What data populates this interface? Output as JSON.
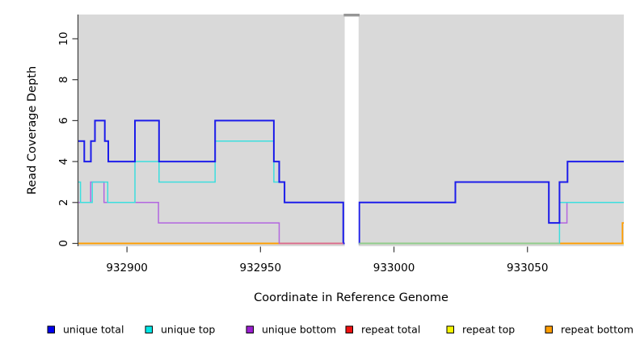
{
  "figure": {
    "xlabel": "Coordinate in Reference Genome",
    "ylabel": "Read Coverage Depth"
  },
  "chart_data": {
    "type": "line",
    "subtype": "step-after-coverage",
    "title": "",
    "xlabel": "Coordinate in Reference Genome",
    "ylabel": "Read Coverage Depth",
    "xlim": [
      932881.8,
      933086.1
    ],
    "ylim": [
      0,
      11.2
    ],
    "x_ticks": [
      932900,
      932950,
      933000,
      933050
    ],
    "x_tick_labels": [
      "932900",
      "932950",
      "933000",
      "933050"
    ],
    "y_ticks": [
      0,
      2,
      4,
      6,
      8,
      10
    ],
    "y_tick_labels": [
      "0",
      "2",
      "4",
      "6",
      "8",
      "10"
    ],
    "grid": false,
    "panel_bg": "#d9d9d9",
    "axis_color": "#3c3c3c",
    "gap": {
      "x_start": 932981.55,
      "x_end": 932986.75,
      "fill": "#ffffff",
      "cap_color": "#969696"
    },
    "legend_position": "bottom",
    "series": [
      {
        "name": "unique total",
        "color": "#1c1cea",
        "swatch": "#0000ee",
        "width": 2.0,
        "points": [
          [
            932881.8,
            5
          ],
          [
            932884,
            4
          ],
          [
            932886.5,
            5
          ],
          [
            932888,
            6
          ],
          [
            932891.7,
            5
          ],
          [
            932893,
            4
          ],
          [
            932903,
            6
          ],
          [
            932912,
            4
          ],
          [
            932933,
            6
          ],
          [
            932955,
            4
          ],
          [
            932957,
            3
          ],
          [
            932959,
            2
          ],
          [
            932981,
            0
          ],
          [
            932987,
            2
          ],
          [
            933023,
            3
          ],
          [
            933058,
            1
          ],
          [
            933062,
            3
          ],
          [
            933065,
            4
          ]
        ]
      },
      {
        "name": "unique top",
        "color": "#3cdede",
        "swatch": "#00e6e6",
        "width": 1.5,
        "points": [
          [
            932881.8,
            3
          ],
          [
            932882.6,
            2
          ],
          [
            932887,
            3
          ],
          [
            932892.8,
            2
          ],
          [
            932903,
            4
          ],
          [
            932912,
            3
          ],
          [
            932933,
            5
          ],
          [
            932955,
            3
          ],
          [
            932959,
            2
          ],
          [
            932981,
            0
          ],
          [
            933062,
            2
          ]
        ]
      },
      {
        "name": "unique bottom",
        "color": "#b266e0",
        "swatch": "#9b1fd0",
        "width": 1.5,
        "points": [
          [
            932881.8,
            2
          ],
          [
            932886.4,
            3
          ],
          [
            932891.4,
            2
          ],
          [
            932911.8,
            1
          ],
          [
            932957,
            0
          ],
          [
            932987,
            2
          ],
          [
            933023,
            3
          ],
          [
            933058,
            1
          ],
          [
            933064.8,
            2
          ]
        ]
      },
      {
        "name": "repeat total",
        "color": "#ee1111",
        "swatch": "#ee1111",
        "width": 1.5,
        "points": [
          [
            932881.8,
            0
          ]
        ]
      },
      {
        "name": "repeat top",
        "color": "#f5f500",
        "swatch": "#f5f500",
        "width": 1.5,
        "points": [
          [
            932881.8,
            0
          ]
        ]
      },
      {
        "name": "repeat bottom",
        "color": "#ff9d00",
        "swatch": "#ff9d00",
        "width": 1.8,
        "points": [
          [
            932881.8,
            0
          ],
          [
            933085.6,
            1
          ]
        ]
      }
    ],
    "draw_order": [
      3,
      4,
      5,
      2,
      1,
      0
    ],
    "zero_line_overlay_segments": [
      {
        "x_start": 932957,
        "x_end": 932981,
        "color": "#db6a92",
        "note": "unique-bottom over repeat lines at depth 0"
      },
      {
        "x_start": 932986.8,
        "x_end": 933062,
        "color": "#8fce8f",
        "note": "unique-top over repeat lines at depth 0"
      }
    ],
    "legend": [
      {
        "label": "unique total",
        "color": "#0000ee"
      },
      {
        "label": "unique top",
        "color": "#00e6e6"
      },
      {
        "label": "unique bottom",
        "color": "#9b1fd0"
      },
      {
        "label": "repeat total",
        "color": "#ee1111"
      },
      {
        "label": "repeat top",
        "color": "#f5f500"
      },
      {
        "label": "repeat bottom",
        "color": "#ff9d00"
      }
    ]
  }
}
